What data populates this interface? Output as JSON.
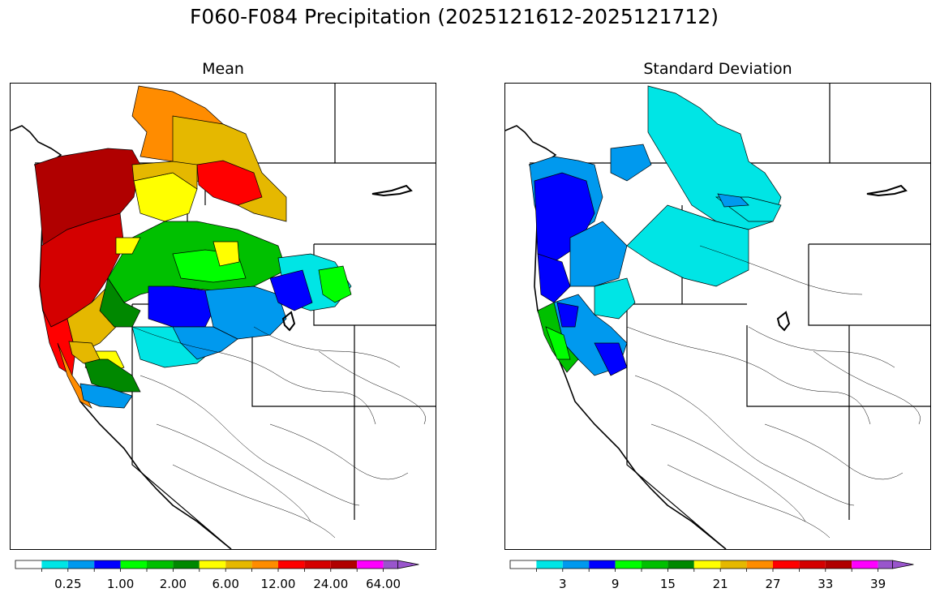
{
  "figure": {
    "title": "F060-F084 Precipitation (2025121612-2025121712)"
  },
  "panels": [
    {
      "title": "Mean"
    },
    {
      "title": "Standard Deviation"
    }
  ],
  "colorbars": {
    "colors": [
      "#ffffff",
      "#00e5e5",
      "#0099ee",
      "#0000ff",
      "#00ff00",
      "#00c000",
      "#008800",
      "#ffff00",
      "#e5b800",
      "#ff8c00",
      "#ff0000",
      "#d40000",
      "#b00000",
      "#ff00ff",
      "#9955cc"
    ],
    "mean_labels": [
      "0.25",
      "1.00",
      "2.00",
      "6.00",
      "12.00",
      "24.00",
      "64.00"
    ],
    "std_labels": [
      "3",
      "9",
      "15",
      "21",
      "27",
      "33",
      "39"
    ]
  },
  "legend": {
    "colorscale_hex": [
      "#ffffff",
      "#00e5e5",
      "#0099ee",
      "#0000ff",
      "#00ff00",
      "#00c000",
      "#008800",
      "#ffff00",
      "#e5b800",
      "#ff8c00",
      "#ff0000",
      "#d40000",
      "#b00000",
      "#ff00ff",
      "#9955cc"
    ]
  }
}
